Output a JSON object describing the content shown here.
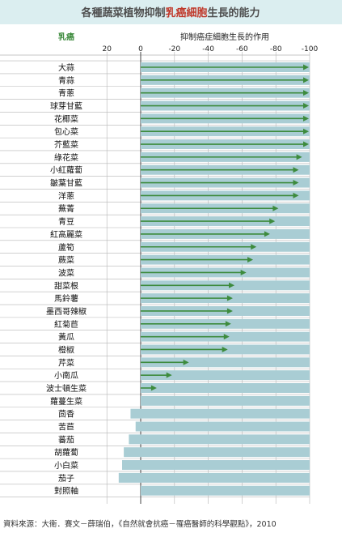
{
  "title_parts": [
    "各種蔬菜植物抑制",
    "乳癌細胞",
    "生長的能力"
  ],
  "colors": {
    "title_band": "#dbeef0",
    "bar": "#a9cdd4",
    "arrow": "#3d8b3d",
    "grid": "#b5b5b5",
    "title_highlight": "#c0392b",
    "left_header": "#3d8b3d"
  },
  "source_text": "資料來源：大衛．賽文－薛瑞伯，《自然就會抗癌－罹癌醫師的科學觀點》，2010",
  "chart_data": {
    "type": "bar",
    "orientation": "horizontal",
    "title": "各種蔬菜植物抑制乳癌細胞生長的能力",
    "row_header": "乳癌",
    "xlabel": "抑制癌症細胞生長的作用",
    "x_ticks": [
      "20",
      "0",
      "-20",
      "-40",
      "-60",
      "-80",
      "-100"
    ],
    "x_tick_values": [
      20,
      0,
      -20,
      -40,
      -60,
      -80,
      -100
    ],
    "xlim": [
      28,
      -100
    ],
    "grid": true,
    "categories": [
      "大蒜",
      "青蒜",
      "青蔥",
      "球芽甘藍",
      "花椰菜",
      "包心菜",
      "芥藍菜",
      "綠花菜",
      "小紅蘿蔔",
      "皺葉甘藍",
      "洋蔥",
      "蕪菁",
      "青豆",
      "紅高麗菜",
      "蘆筍",
      "蕨菜",
      "波菜",
      "甜菜根",
      "馬鈴薯",
      "墨西哥辣椒",
      "紅菊苣",
      "黃瓜",
      "橙椒",
      "芹菜",
      "小南瓜",
      "波士頓生菜",
      "蘿蔓生菜",
      "茴香",
      "苦苣",
      "蕃茄",
      "胡蘿蔔",
      "小白菜",
      "茄子",
      "對照軸"
    ],
    "values": [
      -100,
      -100,
      -100,
      -100,
      -100,
      -100,
      -100,
      -96,
      -94,
      -94,
      -94,
      -82,
      -80,
      -77,
      -69,
      -67,
      -63,
      -56,
      -55,
      -55,
      -54,
      -53,
      -52,
      -29,
      -19,
      -10,
      0,
      6,
      3,
      7,
      10,
      11,
      13,
      0
    ]
  }
}
